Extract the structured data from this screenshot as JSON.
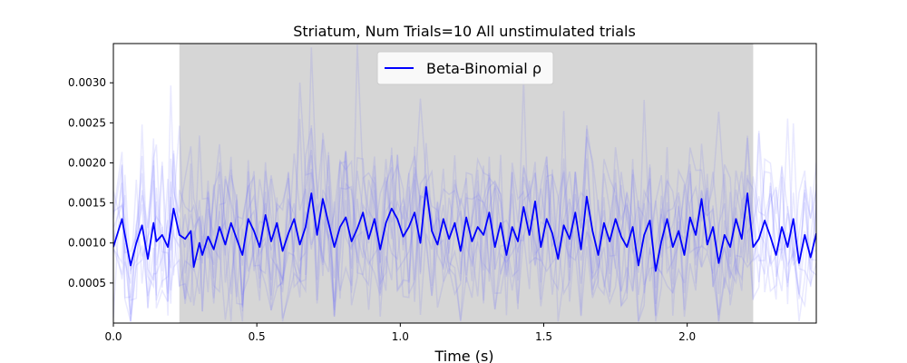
{
  "chart_data": {
    "type": "line",
    "title": "Striatum, Num Trials=10 All unstimulated trials",
    "xlabel": "Time (s)",
    "ylabel": "",
    "xlim": [
      0.0,
      2.45
    ],
    "ylim": [
      0.0,
      0.00349
    ],
    "x_ticks": [
      0.0,
      0.5,
      1.0,
      1.5,
      2.0
    ],
    "x_tick_labels": [
      "0.0",
      "0.5",
      "1.0",
      "1.5",
      "2.0"
    ],
    "y_ticks": [
      0.0005,
      0.001,
      0.0015,
      0.002,
      0.0025,
      0.003
    ],
    "y_tick_labels": [
      "0.0005",
      "0.0010",
      "0.0015",
      "0.0020",
      "0.0025",
      "0.0030"
    ],
    "grid": false,
    "legend_position": "top-center",
    "legend": [
      {
        "label": "Beta-Binomial ρ",
        "color": "#0000ff"
      }
    ],
    "shaded_region": {
      "x_start": 0.23,
      "x_end": 2.23,
      "color": "#d6d6d6"
    },
    "trial_line_color": "#6666ff",
    "series": [
      {
        "name": "Beta-Binomial ρ",
        "color": "#0000ff",
        "x": [
          0.0,
          0.03,
          0.04,
          0.06,
          0.08,
          0.1,
          0.12,
          0.14,
          0.15,
          0.17,
          0.19,
          0.2,
          0.21,
          0.23,
          0.25,
          0.27,
          0.28,
          0.3,
          0.31,
          0.33,
          0.35,
          0.37,
          0.39,
          0.41,
          0.43,
          0.45,
          0.47,
          0.49,
          0.51,
          0.53,
          0.55,
          0.57,
          0.59,
          0.61,
          0.63,
          0.65,
          0.67,
          0.69,
          0.71,
          0.73,
          0.75,
          0.77,
          0.79,
          0.81,
          0.83,
          0.85,
          0.87,
          0.89,
          0.91,
          0.93,
          0.95,
          0.97,
          0.99,
          1.01,
          1.03,
          1.05,
          1.07,
          1.09,
          1.11,
          1.13,
          1.15,
          1.17,
          1.19,
          1.21,
          1.23,
          1.25,
          1.27,
          1.29,
          1.31,
          1.33,
          1.35,
          1.37,
          1.39,
          1.41,
          1.43,
          1.45,
          1.47,
          1.49,
          1.51,
          1.53,
          1.55,
          1.57,
          1.59,
          1.61,
          1.63,
          1.65,
          1.67,
          1.69,
          1.71,
          1.73,
          1.75,
          1.77,
          1.79,
          1.81,
          1.83,
          1.85,
          1.87,
          1.89,
          1.91,
          1.93,
          1.95,
          1.97,
          1.99,
          2.01,
          2.03,
          2.05,
          2.07,
          2.09,
          2.11,
          2.13,
          2.15,
          2.17,
          2.19,
          2.21,
          2.23,
          2.25,
          2.27,
          2.29,
          2.31,
          2.33,
          2.35,
          2.37,
          2.39,
          2.41,
          2.43,
          2.45
        ],
        "values": [
          0.00095,
          0.0013,
          0.0011,
          0.00072,
          0.001,
          0.00122,
          0.0008,
          0.00125,
          0.00102,
          0.0011,
          0.00095,
          0.00118,
          0.00143,
          0.0011,
          0.00105,
          0.00115,
          0.0007,
          0.001,
          0.00085,
          0.00108,
          0.00092,
          0.0012,
          0.00098,
          0.00125,
          0.00105,
          0.00085,
          0.0013,
          0.00115,
          0.00095,
          0.00135,
          0.00102,
          0.00125,
          0.0009,
          0.00112,
          0.0013,
          0.00098,
          0.0012,
          0.00162,
          0.0011,
          0.00155,
          0.00125,
          0.00095,
          0.0012,
          0.00132,
          0.00102,
          0.00118,
          0.00138,
          0.00105,
          0.0013,
          0.00092,
          0.00125,
          0.00143,
          0.0013,
          0.00108,
          0.0012,
          0.00138,
          0.001,
          0.0017,
          0.00115,
          0.00098,
          0.0013,
          0.00105,
          0.00125,
          0.0009,
          0.00132,
          0.00102,
          0.0012,
          0.0011,
          0.00138,
          0.00095,
          0.00125,
          0.00085,
          0.0012,
          0.00102,
          0.00145,
          0.0011,
          0.00152,
          0.00095,
          0.0013,
          0.00112,
          0.0008,
          0.00122,
          0.00105,
          0.00138,
          0.00092,
          0.00158,
          0.00115,
          0.00085,
          0.00125,
          0.00102,
          0.0013,
          0.00108,
          0.00095,
          0.0012,
          0.00072,
          0.0011,
          0.00128,
          0.00065,
          0.00102,
          0.0013,
          0.00095,
          0.00115,
          0.00085,
          0.00132,
          0.0011,
          0.00155,
          0.00098,
          0.0012,
          0.00075,
          0.0011,
          0.00095,
          0.0013,
          0.00105,
          0.00162,
          0.00095,
          0.00105,
          0.00128,
          0.00108,
          0.00085,
          0.0012,
          0.00095,
          0.0013,
          0.00075,
          0.0011,
          0.00082,
          0.00112
        ]
      }
    ]
  }
}
